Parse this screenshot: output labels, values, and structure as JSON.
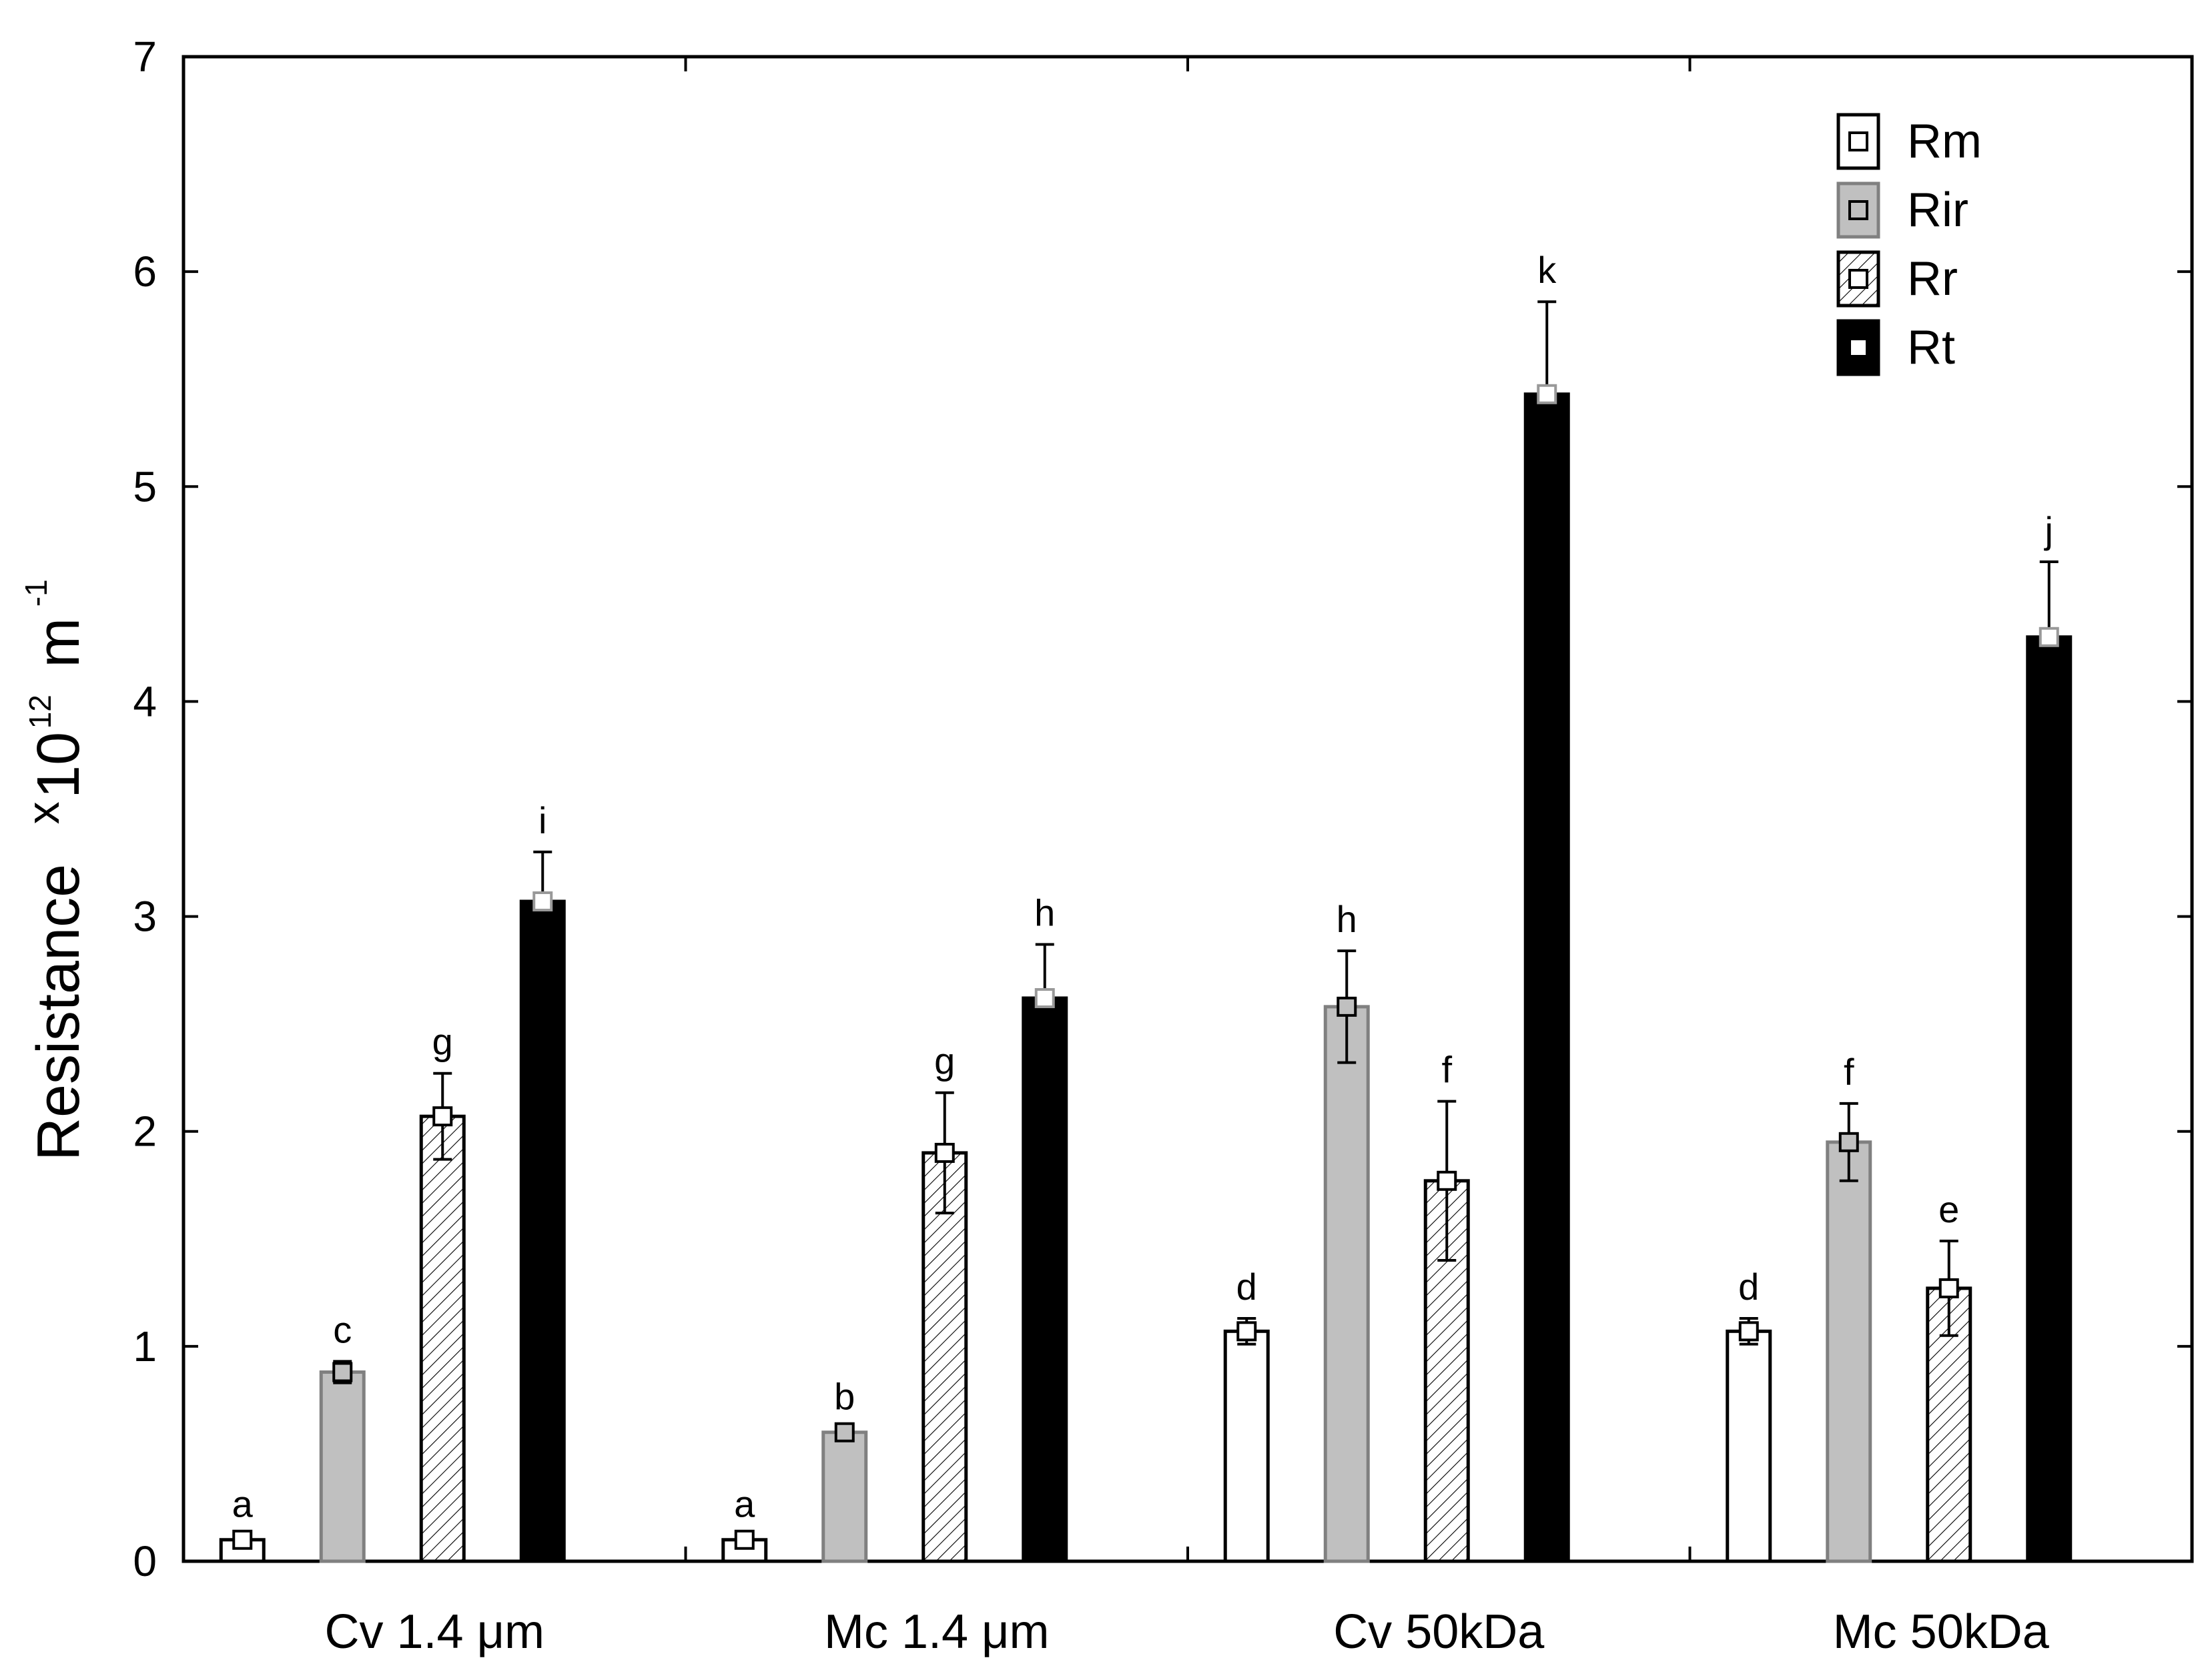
{
  "chart_data": {
    "type": "bar",
    "ylabel": {
      "text": "Resistance",
      "multiplier_prefix": "x",
      "multiplier_base": "10",
      "multiplier_exponent": "12",
      "unit": "m",
      "unit_exponent": "-1"
    },
    "ylim": [
      0,
      7
    ],
    "yticks": [
      0,
      1,
      2,
      3,
      4,
      5,
      6,
      7
    ],
    "categories": [
      "Cv 1.4 μm",
      "Mc 1.4 μm",
      "Cv 50kDa",
      "Mc 50kDa"
    ],
    "series": [
      {
        "name": "Rm",
        "values": [
          0.1,
          0.1,
          1.07,
          1.07
        ],
        "errors": [
          0.02,
          0.02,
          0.06,
          0.06
        ],
        "letters": [
          "a",
          "a",
          "d",
          "d"
        ],
        "style": "white"
      },
      {
        "name": "Rir",
        "values": [
          0.88,
          0.6,
          2.58,
          1.95
        ],
        "errors": [
          0.05,
          0.02,
          0.26,
          0.18
        ],
        "letters": [
          "c",
          "b",
          "h",
          "f"
        ],
        "style": "gray"
      },
      {
        "name": "Rr",
        "values": [
          2.07,
          1.9,
          1.77,
          1.27
        ],
        "errors": [
          0.2,
          0.28,
          0.37,
          0.22
        ],
        "letters": [
          "g",
          "g",
          "f",
          "e"
        ],
        "style": "hatched"
      },
      {
        "name": "Rt",
        "values": [
          3.07,
          2.62,
          5.43,
          4.3
        ],
        "errors": [
          0.23,
          0.25,
          0.43,
          0.35
        ],
        "letters": [
          "i",
          "h",
          "k",
          "j"
        ],
        "style": "black"
      }
    ],
    "legend": {
      "position": "top-right"
    },
    "grid": false
  }
}
